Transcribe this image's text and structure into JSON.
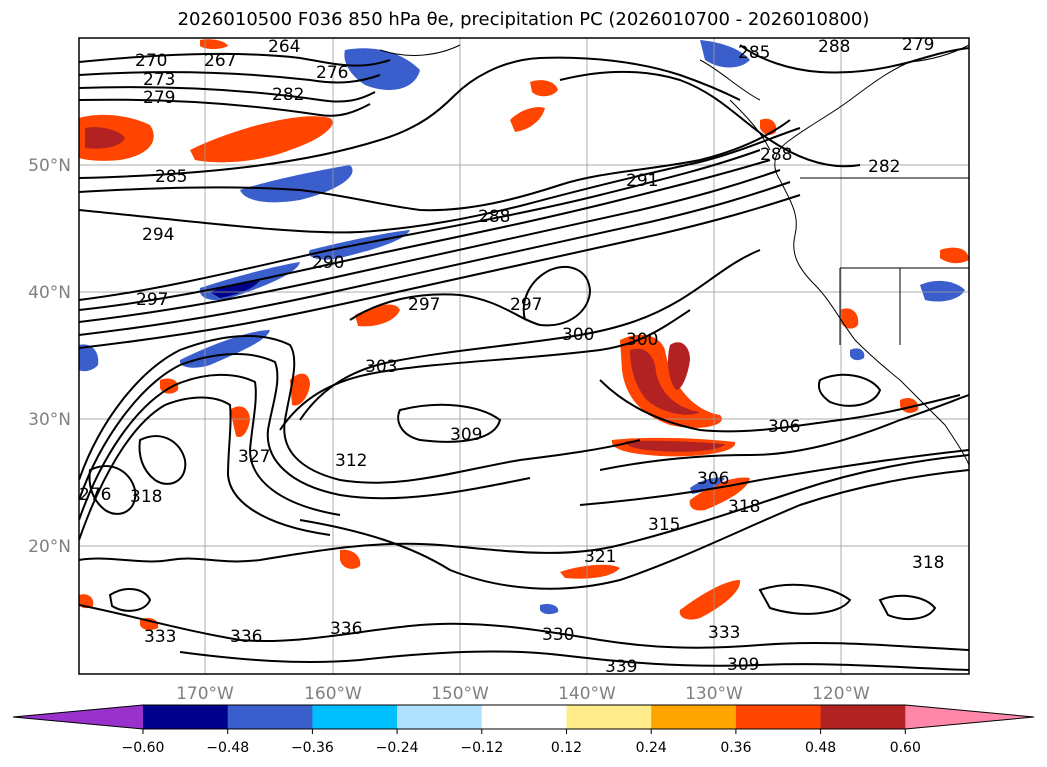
{
  "title": "2026010500 F036 850 hPa θe, precipitation PC (2026010700 - 2026010800)",
  "map": {
    "lat_labels": [
      "50°N",
      "40°N",
      "30°N",
      "20°N"
    ],
    "lon_labels": [
      "170°W",
      "160°W",
      "150°W",
      "140°W",
      "130°W",
      "120°W"
    ]
  },
  "contour_labels": [
    "270",
    "267",
    "264",
    "273",
    "279",
    "282",
    "276",
    "285",
    "291",
    "288",
    "294",
    "290",
    "297",
    "297",
    "297",
    "300",
    "300",
    "303",
    "306",
    "306",
    "309",
    "312",
    "318",
    "318",
    "318",
    "321",
    "327",
    "315",
    "330",
    "333",
    "333",
    "336",
    "336",
    "339",
    "309",
    "276",
    "285",
    "288",
    "288",
    "282",
    "279"
  ],
  "colorbar": {
    "ticks": [
      "−0.60",
      "−0.48",
      "−0.36",
      "−0.24",
      "−0.12",
      "0.12",
      "0.24",
      "0.36",
      "0.48",
      "0.60"
    ],
    "colors": [
      "#9932cc",
      "#00008b",
      "#3a5fcd",
      "#00bfff",
      "#b0e2ff",
      "#ffffff",
      "#ffec8b",
      "#ffa500",
      "#ff4500",
      "#b22222",
      "#ff88aa"
    ]
  },
  "colors": {
    "grid": "#999999",
    "contour": "#000000"
  }
}
